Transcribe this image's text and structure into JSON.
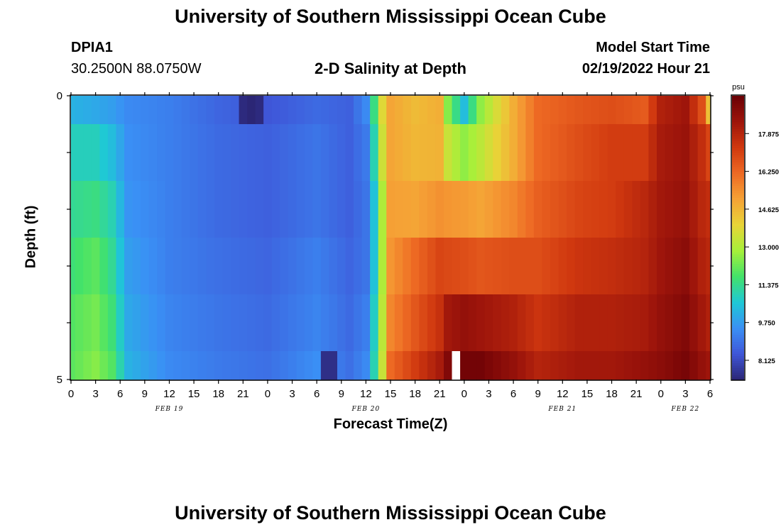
{
  "header": {
    "title": "University of Southern Mississippi Ocean Cube",
    "station_id": "DPIA1",
    "station_coords": "30.2500N  88.0750W",
    "chart_title": "2-D Salinity at Depth",
    "model_start_label": "Model Start Time",
    "model_start_value": "02/19/2022 Hour 21"
  },
  "footer": {
    "title": "University of Southern Mississippi Ocean Cube"
  },
  "chart_data": {
    "type": "heatmap",
    "title": "2-D Salinity at Depth",
    "xlabel": "Forecast Time(Z)",
    "ylabel": "Depth (ft)",
    "x_unit": "hours since 02/19/2022 00Z",
    "x_range": [
      0,
      78
    ],
    "x_tick_labels": [
      "0",
      "3",
      "6",
      "9",
      "12",
      "15",
      "18",
      "21",
      "0",
      "3",
      "6",
      "9",
      "12",
      "15",
      "18",
      "21",
      "0",
      "3",
      "6",
      "9",
      "12",
      "15",
      "18",
      "21",
      "0",
      "3",
      "6"
    ],
    "date_labels": [
      {
        "label": "FEB 19",
        "hour": 12
      },
      {
        "label": "FEB 20",
        "hour": 36
      },
      {
        "label": "FEB 21",
        "hour": 60
      },
      {
        "label": "FEB 22",
        "hour": 75
      }
    ],
    "y_range": [
      0,
      5
    ],
    "y_tick_labels": [
      "0",
      "5"
    ],
    "depth_rows": 5,
    "colorbar": {
      "unit": "psu",
      "min": 7.3,
      "max": 19.5,
      "tick_labels": [
        "8.125",
        "9.750",
        "11.375",
        "13.000",
        "14.625",
        "16.250",
        "17.875"
      ],
      "tick_values": [
        8.125,
        9.75,
        11.375,
        13.0,
        14.625,
        16.25,
        17.875
      ]
    },
    "keyframes": [
      {
        "hour": 0,
        "values": [
          10.2,
          10.9,
          11.3,
          11.6,
          11.9,
          12.0
        ]
      },
      {
        "hour": 3,
        "values": [
          10.0,
          10.9,
          11.5,
          12.0,
          12.3,
          12.5
        ]
      },
      {
        "hour": 5,
        "values": [
          9.8,
          10.4,
          11.0,
          11.3,
          11.6,
          11.9
        ]
      },
      {
        "hour": 7,
        "values": [
          9.4,
          9.5,
          9.6,
          9.8,
          10.0,
          10.2
        ]
      },
      {
        "hour": 12,
        "values": [
          9.2,
          9.2,
          9.2,
          9.2,
          9.3,
          9.4
        ]
      },
      {
        "hour": 18,
        "values": [
          8.7,
          8.8,
          8.8,
          8.9,
          9.0,
          9.1
        ]
      },
      {
        "hour": 24,
        "values": [
          8.4,
          8.6,
          8.6,
          8.7,
          8.8,
          8.9
        ]
      },
      {
        "hour": 30,
        "values": [
          8.8,
          9.0,
          9.0,
          9.2,
          9.3,
          9.5
        ]
      },
      {
        "hour": 34,
        "values": [
          8.6,
          8.6,
          8.6,
          8.7,
          8.8,
          8.9
        ]
      },
      {
        "hour": 36,
        "values": [
          9.4,
          9.1,
          9.0,
          9.0,
          9.2,
          9.4
        ]
      },
      {
        "hour": 37,
        "values": [
          11.5,
          11.0,
          10.5,
          10.5,
          10.8,
          11.0
        ]
      },
      {
        "hour": 38,
        "values": [
          13.8,
          13.5,
          13.0,
          13.0,
          13.2,
          13.4
        ]
      },
      {
        "hour": 39,
        "values": [
          15.0,
          15.0,
          15.1,
          15.3,
          15.6,
          16.2
        ]
      },
      {
        "hour": 42,
        "values": [
          14.5,
          14.6,
          15.0,
          16.2,
          16.6,
          17.2
        ]
      },
      {
        "hour": 45,
        "values": [
          14.8,
          14.7,
          15.4,
          17.0,
          17.5,
          18.2
        ]
      },
      {
        "hour": 46,
        "values": [
          12.5,
          13.4,
          15.3,
          16.9,
          18.3,
          19.0
        ]
      },
      {
        "hour": 48,
        "values": [
          10.4,
          12.6,
          15.2,
          16.8,
          18.6,
          19.3
        ]
      },
      {
        "hour": 50,
        "values": [
          12.6,
          13.2,
          15.0,
          16.6,
          18.4,
          19.3
        ]
      },
      {
        "hour": 54,
        "values": [
          14.8,
          14.8,
          15.6,
          16.8,
          18.0,
          18.6
        ]
      },
      {
        "hour": 57,
        "values": [
          16.2,
          16.2,
          16.4,
          16.8,
          17.4,
          17.9
        ]
      },
      {
        "hour": 62,
        "values": [
          16.6,
          16.8,
          17.0,
          17.4,
          18.0,
          18.3
        ]
      },
      {
        "hour": 66,
        "values": [
          16.8,
          17.2,
          17.2,
          17.6,
          18.0,
          18.3
        ]
      },
      {
        "hour": 70,
        "values": [
          16.5,
          17.2,
          17.8,
          17.9,
          18.2,
          18.6
        ]
      },
      {
        "hour": 72,
        "values": [
          18.0,
          18.2,
          18.3,
          18.4,
          18.6,
          18.8
        ]
      },
      {
        "hour": 75,
        "values": [
          18.4,
          18.5,
          18.6,
          18.8,
          19.0,
          19.2
        ]
      },
      {
        "hour": 77,
        "values": [
          16.8,
          17.6,
          17.8,
          18.0,
          18.3,
          18.6
        ]
      },
      {
        "hour": 78,
        "values": [
          14.4,
          17.0,
          17.6,
          17.8,
          18.0,
          18.4
        ]
      }
    ],
    "anomalies": [
      {
        "hour": 21,
        "row": 0,
        "value": 7.4
      },
      {
        "hour": 22,
        "row": 0,
        "value": 6.9
      },
      {
        "hour": 23,
        "row": 0,
        "value": 7.4
      },
      {
        "hour": 31,
        "row": 5,
        "value": 7.5
      },
      {
        "hour": 32,
        "row": 5,
        "value": 7.5
      },
      {
        "hour": 47,
        "row": 5,
        "value": null
      }
    ],
    "colors": {
      "background": "#ffffff",
      "missing": "#ffffff",
      "ramp": [
        "#2b2675",
        "#3f56d8",
        "#3a90f5",
        "#1ec8d6",
        "#43e26a",
        "#a6f03a",
        "#e8d437",
        "#f5a236",
        "#ee6a24",
        "#d0380f",
        "#9e150b",
        "#6a0005"
      ]
    }
  }
}
